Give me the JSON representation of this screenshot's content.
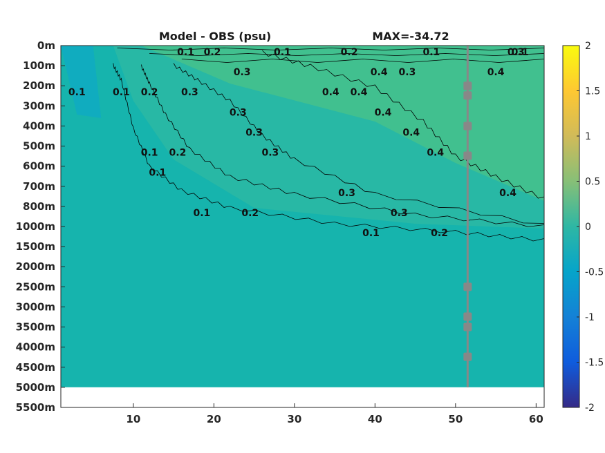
{
  "chart_data": {
    "type": "heatmap",
    "title": "Model - OBS (psu)",
    "subtitle": "MAX=-34.72",
    "xlim": [
      1,
      61
    ],
    "x_ticks": [
      10,
      20,
      30,
      40,
      50,
      60
    ],
    "y_ticks": [
      "0m",
      "100m",
      "200m",
      "300m",
      "400m",
      "500m",
      "600m",
      "700m",
      "800m",
      "1000m",
      "1500m",
      "2000m",
      "2500m",
      "3000m",
      "3500m",
      "4000m",
      "4500m",
      "5000m",
      "5500m"
    ],
    "colorbar": {
      "range": [
        -2,
        2
      ],
      "ticks": [
        2,
        1.5,
        1,
        0.5,
        0,
        -0.5,
        -1,
        -1.5,
        -2
      ],
      "tick_labels": [
        "2",
        "1.5",
        "1",
        "0.5",
        "0",
        "-0.5",
        "-1",
        "-1.5",
        "-2"
      ],
      "colormap": "parula"
    },
    "colors": {
      "background_fill": "#16b4ad",
      "upper_warm": "#44c18d",
      "contour_line": "#000000",
      "station_line": "#888888"
    },
    "contour_levels": [
      0.1,
      0.2,
      0.3,
      0.4
    ],
    "contour_labels": [
      {
        "text": "0.1",
        "x": 16.5,
        "depth": "0m"
      },
      {
        "text": "0.2",
        "x": 19.8,
        "depth": "0m"
      },
      {
        "text": "0.3",
        "x": 23.5,
        "depth": "100m"
      },
      {
        "text": "0.1",
        "x": 28.5,
        "depth": "0m"
      },
      {
        "text": "0.2",
        "x": 36.8,
        "depth": "0m"
      },
      {
        "text": "0.4",
        "x": 40.5,
        "depth": "100m"
      },
      {
        "text": "0.3",
        "x": 44.0,
        "depth": "100m"
      },
      {
        "text": "0.1",
        "x": 47.0,
        "depth": "0m"
      },
      {
        "text": "0.1",
        "x": 3.0,
        "depth": "200m"
      },
      {
        "text": "0.1",
        "x": 8.5,
        "depth": "200m"
      },
      {
        "text": "0.2",
        "x": 12.0,
        "depth": "200m"
      },
      {
        "text": "0.3",
        "x": 17.0,
        "depth": "200m"
      },
      {
        "text": "0.4",
        "x": 34.5,
        "depth": "200m"
      },
      {
        "text": "0.4",
        "x": 38.0,
        "depth": "200m"
      },
      {
        "text": "0.4",
        "x": 41.0,
        "depth": "300m"
      },
      {
        "text": "0.4",
        "x": 44.5,
        "depth": "400m"
      },
      {
        "text": "0.4",
        "x": 47.5,
        "depth": "500m"
      },
      {
        "text": "0.3",
        "x": 23.0,
        "depth": "300m"
      },
      {
        "text": "0.3",
        "x": 25.0,
        "depth": "400m"
      },
      {
        "text": "0.3",
        "x": 27.0,
        "depth": "500m"
      },
      {
        "text": "0.2",
        "x": 15.5,
        "depth": "500m"
      },
      {
        "text": "0.1",
        "x": 12.0,
        "depth": "500m"
      },
      {
        "text": "0.1",
        "x": 13.0,
        "depth": "600m"
      },
      {
        "text": "0.3",
        "x": 36.5,
        "depth": "700m"
      },
      {
        "text": "0.2",
        "x": 24.5,
        "depth": "800m"
      },
      {
        "text": "0.3",
        "x": 43.0,
        "depth": "800m"
      },
      {
        "text": "0.1",
        "x": 18.5,
        "depth": "800m"
      },
      {
        "text": "0.2",
        "x": 48.0,
        "depth": "1000m"
      },
      {
        "text": "0.1",
        "x": 39.5,
        "depth": "1000m"
      },
      {
        "text": "0.4",
        "x": 56.5,
        "depth": "700m"
      },
      {
        "text": "0.4",
        "x": 55.0,
        "depth": "100m"
      },
      {
        "text": "0.1",
        "x": 58.0,
        "depth": "0m"
      },
      {
        "text": "0.3",
        "x": 57.5,
        "depth": "0m"
      }
    ],
    "station": {
      "x": 51.5,
      "marker_depths": [
        "200m",
        "200m",
        "400m",
        "500m",
        "2500m",
        "3000m",
        "3500m",
        "4000m"
      ]
    }
  }
}
